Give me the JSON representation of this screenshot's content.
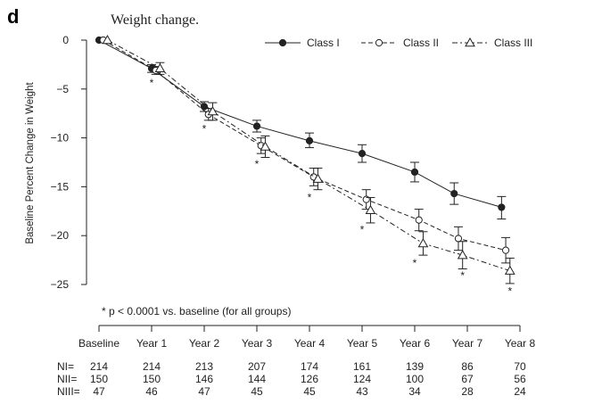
{
  "panel_label": "d",
  "chart_data": {
    "type": "line",
    "title": "Weight change.",
    "xlabel": "",
    "ylabel": "Baseline Percent Change in Weight",
    "ylim": [
      -27,
      0
    ],
    "yticks": [
      0,
      -5,
      -10,
      -15,
      -20,
      -25
    ],
    "ytick_labels": [
      "0",
      "−5",
      "−10",
      "−15",
      "−20",
      "−25"
    ],
    "categories": [
      "Baseline",
      "Year 1",
      "Year 2",
      "Year 3",
      "Year 4",
      "Year 5",
      "Year 6",
      "Year 7",
      "Year 8"
    ],
    "grid": false,
    "legend_position": "top-right",
    "series": [
      {
        "name": "Class I",
        "style": "solid",
        "marker": "filled-circle",
        "x": [
          0,
          1,
          2,
          3,
          4,
          5,
          6,
          6.75,
          7.65
        ],
        "values": [
          0,
          -2.9,
          -6.8,
          -8.8,
          -10.3,
          -11.6,
          -13.5,
          -15.7,
          -17.1
        ],
        "err_low": [
          0,
          -3.3,
          -7.3,
          -9.4,
          -11.0,
          -12.5,
          -14.5,
          -16.8,
          -18.3
        ],
        "err_high": [
          0,
          -2.5,
          -6.3,
          -8.2,
          -9.5,
          -10.7,
          -12.5,
          -14.6,
          -16.0
        ]
      },
      {
        "name": "Class II",
        "style": "dashed",
        "marker": "open-circle",
        "x": [
          0.08,
          1.08,
          2.08,
          3.08,
          4.08,
          5.08,
          6.08,
          6.83,
          7.73
        ],
        "values": [
          0,
          -3.1,
          -7.6,
          -10.8,
          -14.0,
          -16.3,
          -18.4,
          -20.3,
          -21.5
        ],
        "err_low": [
          0,
          -3.5,
          -8.2,
          -11.6,
          -14.9,
          -17.3,
          -19.5,
          -21.5,
          -22.8
        ],
        "err_high": [
          0,
          -2.7,
          -7.0,
          -10.0,
          -13.1,
          -15.3,
          -17.3,
          -19.1,
          -20.2
        ]
      },
      {
        "name": "Class III",
        "style": "dash-dot",
        "marker": "open-triangle",
        "x": [
          0.16,
          1.16,
          2.16,
          3.16,
          4.16,
          5.16,
          6.16,
          6.91,
          7.81
        ],
        "values": [
          0,
          -2.9,
          -7.3,
          -10.9,
          -14.2,
          -17.4,
          -20.8,
          -22.0,
          -23.6
        ],
        "err_low": [
          0,
          -3.5,
          -8.2,
          -12.0,
          -15.3,
          -18.7,
          -22.0,
          -23.4,
          -24.9
        ],
        "err_high": [
          0,
          -2.3,
          -6.4,
          -9.8,
          -13.1,
          -16.1,
          -19.6,
          -20.6,
          -22.3
        ]
      }
    ],
    "significance_markers": {
      "symbol": "*",
      "positions": [
        1,
        2,
        3,
        4,
        5,
        6,
        6.91,
        7.81
      ],
      "y_values": [
        -4.3,
        -9.0,
        -12.6,
        -16.0,
        -19.3,
        -22.7,
        -24.0,
        -25.6
      ]
    },
    "annotation": "* p < 0.0001 vs. baseline (for all groups)",
    "n_table": {
      "rows": [
        {
          "label": "NI=",
          "values": [
            "214",
            "214",
            "213",
            "207",
            "174",
            "161",
            "139",
            "86",
            "70"
          ]
        },
        {
          "label": "NII=",
          "values": [
            "150",
            "150",
            "146",
            "144",
            "126",
            "124",
            "100",
            "67",
            "56"
          ]
        },
        {
          "label": "NIII=",
          "values": [
            "47",
            "46",
            "47",
            "45",
            "45",
            "43",
            "34",
            "28",
            "24"
          ]
        }
      ]
    }
  }
}
